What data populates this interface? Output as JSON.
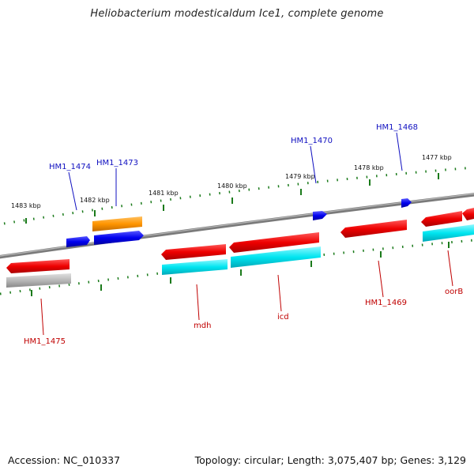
{
  "title": "Heliobacterium modesticaldum Ice1, complete genome",
  "footer": {
    "accession": "Accession: NC_010337",
    "topology": "Topology: circular; Length: 3,075,407 bp; Genes: 3,129"
  },
  "colors": {
    "backbone": "#808080",
    "ticks": "#1a7a1a",
    "forward_label": "#1010c0",
    "reverse_label": "#c00000",
    "red_gene": "#ee0000",
    "cyan_gene": "#00e5f0",
    "blue_gene": "#0000ee",
    "orange_gene": "#ff9500",
    "gray_gene": "#b0b0b0"
  },
  "scale_labels": [
    "1483 kbp",
    "1482 kbp",
    "1481 kbp",
    "1480 kbp",
    "1479 kbp",
    "1478 kbp",
    "1477 kbp"
  ],
  "gene_labels_upper": [
    "HM1_1474",
    "HM1_1473",
    "HM1_1470",
    "HM1_1468"
  ],
  "gene_labels_lower": [
    "HM1_1475",
    "mdh",
    "icd",
    "HM1_1469",
    "oorB"
  ]
}
